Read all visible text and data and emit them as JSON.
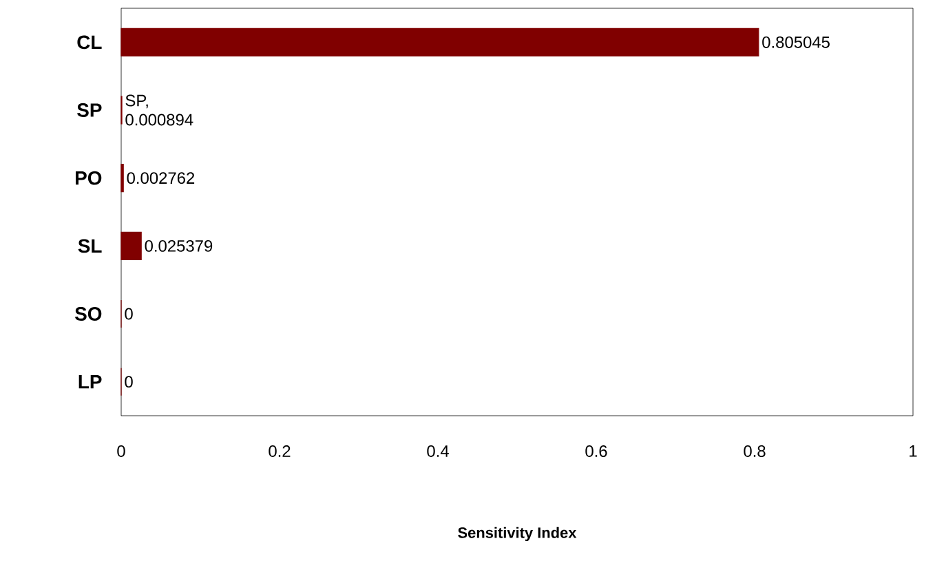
{
  "chart_data": {
    "type": "bar",
    "orientation": "horizontal",
    "xlabel": "Sensitivity Index",
    "categories": [
      "CL",
      "SP",
      "PO",
      "SL",
      "SO",
      "LP"
    ],
    "values": [
      0.805045,
      0.000894,
      0.002762,
      0.025379,
      0,
      0
    ],
    "value_labels": [
      "0.805045",
      "SP, 0.000894",
      "0.002762",
      "0.025379",
      "0",
      "0"
    ],
    "color": "#800000",
    "xlim": [
      0,
      1
    ],
    "xticks": [
      0,
      0.2,
      0.4,
      0.6,
      0.8,
      1
    ]
  }
}
